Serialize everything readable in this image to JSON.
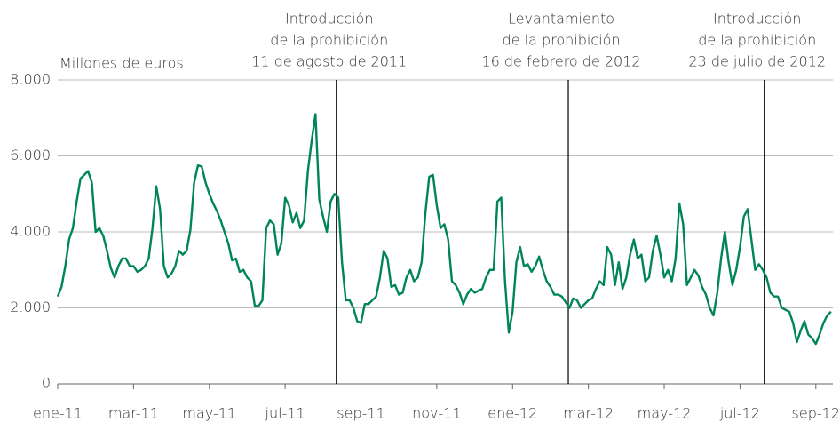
{
  "chart_data": {
    "type": "line",
    "ylabel": "Millones de euros",
    "annotations": [
      {
        "x": 7.35,
        "text": [
          "Introducción",
          "de la prohibición",
          "11 de agosto de 2011"
        ]
      },
      {
        "x": 13.47,
        "text": [
          "Levantamiento",
          "de la prohibición",
          "16 de febrero de 2012"
        ]
      },
      {
        "x": 18.64,
        "text": [
          "Introducción",
          "de la prohibición",
          "23 de julio de 2012"
        ]
      }
    ],
    "xlim": [
      0,
      20.45
    ],
    "xticks": [
      {
        "value": 0,
        "label": "ene-11"
      },
      {
        "value": 2,
        "label": "mar-11"
      },
      {
        "value": 4,
        "label": "may-11"
      },
      {
        "value": 6,
        "label": "jul-11"
      },
      {
        "value": 8,
        "label": "sep-11"
      },
      {
        "value": 10,
        "label": "nov-11"
      },
      {
        "value": 12,
        "label": "ene-12"
      },
      {
        "value": 14,
        "label": "mar-12"
      },
      {
        "value": 16,
        "label": "may-12"
      },
      {
        "value": 18,
        "label": "jul-12"
      },
      {
        "value": 20,
        "label": "sep-12"
      }
    ],
    "ylim": [
      0,
      8000
    ],
    "yticks": [
      0,
      {
        "value": 2000,
        "label": "2.000"
      },
      {
        "value": 4000,
        "label": "4.000"
      },
      {
        "value": 6000,
        "label": "6.000"
      },
      {
        "value": 8000,
        "label": "8.000"
      }
    ],
    "grid": true,
    "x": [
      0,
      0.1,
      0.2,
      0.3,
      0.4,
      0.5,
      0.6,
      0.7,
      0.8,
      0.9,
      1,
      1.1,
      1.2,
      1.3,
      1.4,
      1.5,
      1.6,
      1.7,
      1.8,
      1.9,
      2,
      2.1,
      2.2,
      2.3,
      2.4,
      2.5,
      2.6,
      2.7,
      2.8,
      2.9,
      3,
      3.1,
      3.2,
      3.3,
      3.4,
      3.5,
      3.6,
      3.7,
      3.8,
      3.9,
      4,
      4.1,
      4.2,
      4.3,
      4.4,
      4.5,
      4.6,
      4.7,
      4.8,
      4.9,
      5,
      5.1,
      5.2,
      5.3,
      5.4,
      5.5,
      5.6,
      5.7,
      5.8,
      5.9,
      6,
      6.1,
      6.2,
      6.3,
      6.4,
      6.5,
      6.6,
      6.7,
      6.8,
      6.9,
      7,
      7.1,
      7.2,
      7.3,
      7.4,
      7.5,
      7.6,
      7.7,
      7.8,
      7.9,
      8,
      8.1,
      8.2,
      8.3,
      8.4,
      8.5,
      8.6,
      8.7,
      8.8,
      8.9,
      9,
      9.1,
      9.2,
      9.3,
      9.4,
      9.5,
      9.6,
      9.7,
      9.8,
      9.9,
      10,
      10.1,
      10.2,
      10.3,
      10.4,
      10.5,
      10.6,
      10.7,
      10.8,
      10.9,
      11,
      11.1,
      11.2,
      11.3,
      11.4,
      11.5,
      11.6,
      11.7,
      11.8,
      11.9,
      12,
      12.1,
      12.2,
      12.3,
      12.4,
      12.5,
      12.6,
      12.7,
      12.8,
      12.9,
      13,
      13.1,
      13.2,
      13.3,
      13.4,
      13.5,
      13.6,
      13.7,
      13.8,
      13.9,
      14,
      14.1,
      14.2,
      14.3,
      14.4,
      14.5,
      14.6,
      14.7,
      14.8,
      14.9,
      15,
      15.1,
      15.2,
      15.3,
      15.4,
      15.5,
      15.6,
      15.7,
      15.8,
      15.9,
      16,
      16.1,
      16.2,
      16.3,
      16.4,
      16.5,
      16.6,
      16.7,
      16.8,
      16.9,
      17,
      17.1,
      17.2,
      17.3,
      17.4,
      17.5,
      17.6,
      17.7,
      17.8,
      17.9,
      18,
      18.1,
      18.2,
      18.3,
      18.4,
      18.5,
      18.6,
      18.7,
      18.8,
      18.9,
      19,
      19.1,
      19.2,
      19.3,
      19.4,
      19.5,
      19.6,
      19.7,
      19.8,
      19.9,
      20,
      20.1,
      20.2,
      20.3,
      20.4
    ],
    "series": [
      {
        "color": "#008556",
        "values": [
          2300,
          2550,
          3100,
          3800,
          4100,
          4800,
          5400,
          5500,
          5600,
          5300,
          4000,
          4100,
          3900,
          3500,
          3050,
          2800,
          3100,
          3300,
          3300,
          3100,
          3100,
          2950,
          3000,
          3100,
          3300,
          4100,
          5200,
          4600,
          3100,
          2800,
          2900,
          3100,
          3500,
          3400,
          3500,
          4050,
          5300,
          5750,
          5720,
          5300,
          5000,
          4750,
          4550,
          4300,
          4000,
          3700,
          3250,
          3300,
          2950,
          3000,
          2800,
          2700,
          2050,
          2050,
          2200,
          4100,
          4300,
          4200,
          3400,
          3700,
          4900,
          4700,
          4250,
          4500,
          4100,
          4300,
          5600,
          6400,
          7100,
          4850,
          4400,
          4000,
          4800,
          5000,
          4900,
          3200,
          2200,
          2200,
          2000,
          1650,
          1600,
          2100,
          2100,
          2200,
          2300,
          2800,
          3500,
          3300,
          2550,
          2600,
          2350,
          2400,
          2800,
          3000,
          2700,
          2800,
          3200,
          4500,
          5450,
          5500,
          4700,
          4100,
          4200,
          3800,
          2700,
          2600,
          2400,
          2100,
          2350,
          2500,
          2400,
          2450,
          2500,
          2800,
          3000,
          3000,
          4800,
          4900,
          2700,
          1350,
          1900,
          3200,
          3600,
          3100,
          3150,
          2950,
          3100,
          3350,
          3000,
          2700,
          2550,
          2350,
          2350,
          2300,
          2150,
          2000,
          2250,
          2200,
          2000,
          2100,
          2200,
          2250,
          2500,
          2700,
          2600,
          3600,
          3400,
          2600,
          3200,
          2500,
          2800,
          3400,
          3800,
          3300,
          3400,
          2700,
          2800,
          3500,
          3900,
          3400,
          2800,
          3000,
          2700,
          3300,
          4750,
          4200,
          2600,
          2800,
          3000,
          2850,
          2550,
          2350,
          2000,
          1800,
          2400,
          3300,
          4000,
          3200,
          2600,
          3000,
          3600,
          4400,
          4600,
          3800,
          3000,
          3150,
          3000,
          2800,
          2400,
          2300,
          2300,
          2000,
          1950,
          1900,
          1600,
          1100,
          1400,
          1650,
          1300,
          1200,
          1050,
          1300,
          1600,
          1800,
          1900
        ]
      }
    ]
  }
}
